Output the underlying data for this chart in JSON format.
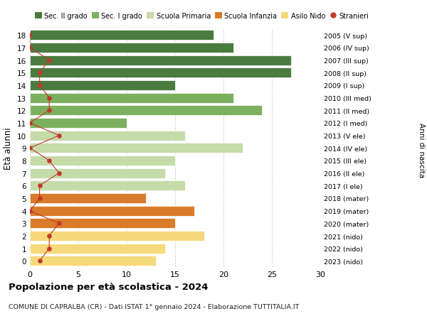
{
  "ages": [
    18,
    17,
    16,
    15,
    14,
    13,
    12,
    11,
    10,
    9,
    8,
    7,
    6,
    5,
    4,
    3,
    2,
    1,
    0
  ],
  "right_labels": [
    "2005 (V sup)",
    "2006 (IV sup)",
    "2007 (III sup)",
    "2008 (II sup)",
    "2009 (I sup)",
    "2010 (III med)",
    "2011 (II med)",
    "2012 (I med)",
    "2013 (V ele)",
    "2014 (IV ele)",
    "2015 (III ele)",
    "2016 (II ele)",
    "2017 (I ele)",
    "2018 (mater)",
    "2019 (mater)",
    "2020 (mater)",
    "2021 (nido)",
    "2022 (nido)",
    "2023 (nido)"
  ],
  "bar_values": [
    19,
    21,
    27,
    27,
    15,
    21,
    24,
    10,
    16,
    22,
    15,
    14,
    16,
    12,
    17,
    15,
    18,
    14,
    13
  ],
  "stranieri": [
    0,
    0,
    2,
    1,
    1,
    2,
    2,
    0,
    3,
    0,
    2,
    3,
    1,
    1,
    0,
    3,
    2,
    2,
    1
  ],
  "bar_colors": [
    "#4a7c3f",
    "#4a7c3f",
    "#4a7c3f",
    "#4a7c3f",
    "#4a7c3f",
    "#7db05e",
    "#7db05e",
    "#7db05e",
    "#c5dba8",
    "#c5dba8",
    "#c5dba8",
    "#c5dba8",
    "#c5dba8",
    "#d97b2a",
    "#d97b2a",
    "#d97b2a",
    "#f5d97a",
    "#f5d97a",
    "#f5d97a"
  ],
  "legend_colors": [
    "#4a7c3f",
    "#7db05e",
    "#c5dba8",
    "#d97b2a",
    "#f5d97a",
    "#c0392b"
  ],
  "legend_labels": [
    "Sec. II grado",
    "Sec. I grado",
    "Scuola Primaria",
    "Scuola Infanzia",
    "Asilo Nido",
    "Stranieri"
  ],
  "ylabel": "Età alunni",
  "right_ylabel": "Anni di nascita",
  "title": "Popolazione per età scolastica - 2024",
  "subtitle": "COMUNE DI CAPRALBA (CR) - Dati ISTAT 1° gennaio 2024 - Elaborazione TUTTITALIA.IT",
  "xlim": [
    0,
    30
  ],
  "xticks": [
    0,
    5,
    10,
    15,
    20,
    25,
    30
  ],
  "background_color": "#ffffff",
  "grid_color": "#cccccc",
  "stranieri_color": "#c0392b",
  "bar_height": 0.8
}
